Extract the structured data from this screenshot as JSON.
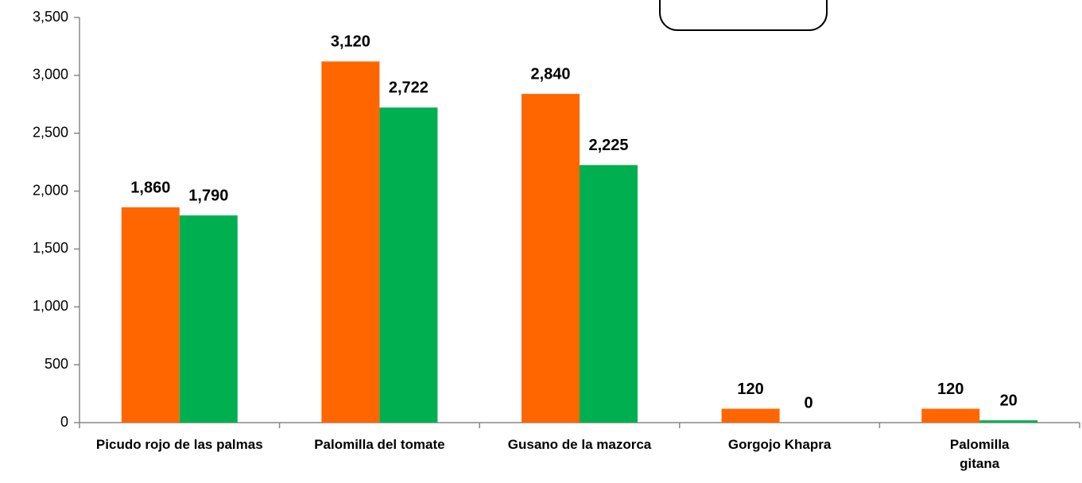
{
  "chart_data": {
    "type": "bar",
    "categories": [
      "Picudo rojo de las palmas",
      "Palomilla del tomate",
      "Gusano de la mazorca",
      "Gorgojo Khapra",
      "Palomilla gitana"
    ],
    "series": [
      {
        "color": "#ff6600",
        "values": [
          1860,
          3120,
          2840,
          120,
          120
        ],
        "value_labels": [
          "1,860",
          "3,120",
          "2,840",
          "120",
          "120"
        ]
      },
      {
        "color": "#00b050",
        "values": [
          1790,
          2722,
          2225,
          0,
          20
        ],
        "value_labels": [
          "1,790",
          "2,722",
          "2,225",
          "0",
          "20"
        ]
      }
    ],
    "ylim": [
      0,
      3500
    ],
    "yticks": [
      0,
      500,
      {
        "value": 1000,
        "label": "1,000"
      },
      {
        "value": 1500,
        "label": "1,500"
      },
      {
        "value": 2000,
        "label": "2,000"
      },
      {
        "value": 2500,
        "label": "2,500"
      },
      {
        "value": 3000,
        "label": "3,000"
      },
      {
        "value": 3500,
        "label": "3,500"
      }
    ],
    "grid": false
  }
}
